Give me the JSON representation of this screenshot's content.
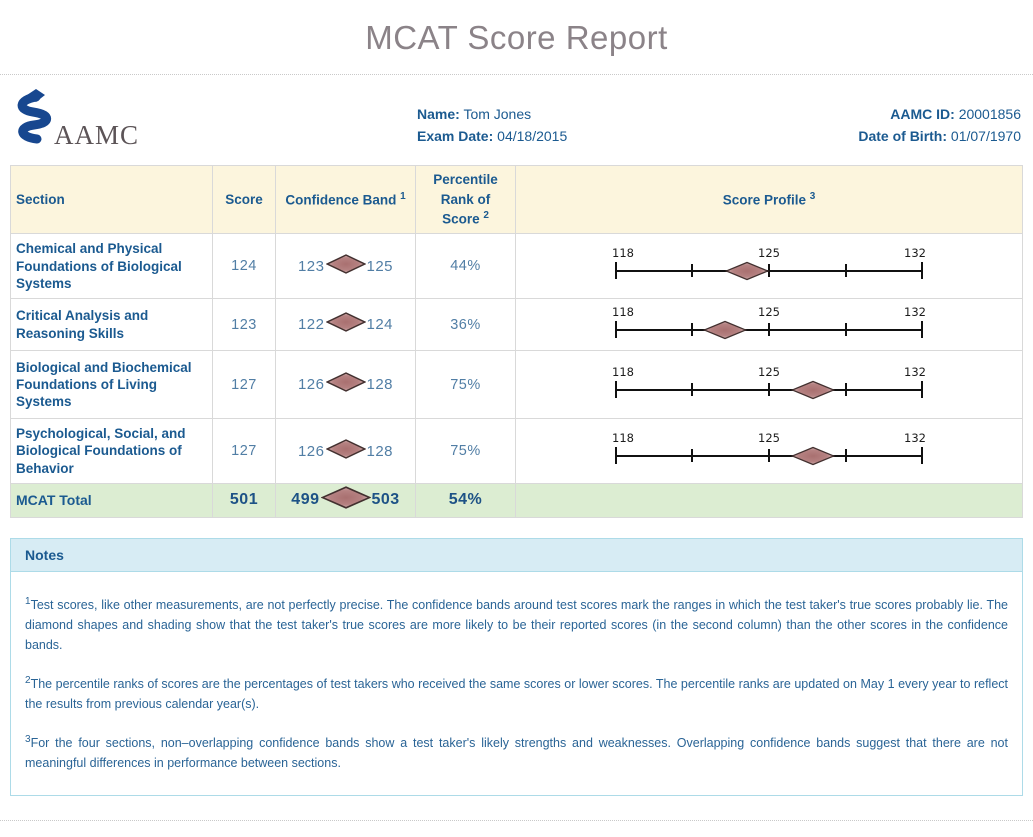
{
  "page": {
    "title": "MCAT Score Report"
  },
  "logo": {
    "text": "AAMC"
  },
  "candidate": {
    "name_label": "Name:",
    "name": "Tom Jones",
    "exam_date_label": "Exam Date:",
    "exam_date": "04/18/2015",
    "aamc_id_label": "AAMC ID:",
    "aamc_id": "20001856",
    "dob_label": "Date of Birth:",
    "dob": "01/07/1970"
  },
  "table": {
    "headers": {
      "section": "Section",
      "score": "Score",
      "confidence_band": "Confidence Band",
      "confidence_band_sup": "1",
      "percentile": "Percentile Rank of Score",
      "percentile_sup": "2",
      "profile": "Score Profile",
      "profile_sup": "3"
    },
    "axis": {
      "min": 118,
      "mid": 125,
      "max": 132
    },
    "rows": [
      {
        "section": "Chemical and Physical Foundations of Biological Systems",
        "score": 124,
        "band_low": 123,
        "band_high": 125,
        "percentile": "44%"
      },
      {
        "section": "Critical Analysis and Reasoning Skills",
        "score": 123,
        "band_low": 122,
        "band_high": 124,
        "percentile": "36%"
      },
      {
        "section": "Biological and Biochemical Foundations of Living Systems",
        "score": 127,
        "band_low": 126,
        "band_high": 128,
        "percentile": "75%"
      },
      {
        "section": "Psychological, Social, and Biological Foundations of Behavior",
        "score": 127,
        "band_low": 126,
        "band_high": 128,
        "percentile": "75%"
      }
    ],
    "total": {
      "section": "MCAT Total",
      "score": 501,
      "band_low": 499,
      "band_high": 503,
      "percentile": "54%"
    }
  },
  "notes": {
    "title": "Notes",
    "items": [
      {
        "sup": "1",
        "text": "Test scores, like other measurements, are not perfectly precise. The confidence bands around test scores mark the ranges in which the test taker's true scores probably lie. The diamond shapes and shading show that the test taker's true scores are more likely to be their reported scores (in the second column) than the other scores in the confidence bands."
      },
      {
        "sup": "2",
        "text": "The percentile ranks of scores are the percentages of test takers who received the same scores or lower scores. The percentile ranks are updated on May 1 every year to reflect the results from previous calendar year(s)."
      },
      {
        "sup": "3",
        "text": "For the four sections, non–overlapping confidence bands show a test taker's likely strengths and weaknesses. Overlapping confidence bands suggest that there are not meaningful differences in performance between sections."
      }
    ]
  },
  "colors": {
    "accent_blue": "#1b5a90",
    "value_blue": "#517ea5",
    "header_cream": "#fcf5dd",
    "total_green": "#dcedd2",
    "notes_bg": "#d7ecf4",
    "notes_border": "#addbe8",
    "diamond_center": "#ad7474",
    "diamond_edge": "#dcc6c6",
    "diamond_border": "#42302f",
    "logo_blue": "#17478f",
    "title_gray": "#8b8388"
  },
  "chart_data": {
    "type": "scatter",
    "title": "Score Profile",
    "x_range": [
      118,
      132
    ],
    "x_ticks": [
      118,
      121.5,
      125,
      128.5,
      132
    ],
    "x_tick_labels_shown": [
      "118",
      "125",
      "132"
    ],
    "series": [
      {
        "name": "Chemical and Physical Foundations of Biological Systems",
        "score": 124,
        "confidence_band": [
          123,
          125
        ],
        "percentile": 44
      },
      {
        "name": "Critical Analysis and Reasoning Skills",
        "score": 123,
        "confidence_band": [
          122,
          124
        ],
        "percentile": 36
      },
      {
        "name": "Biological and Biochemical Foundations of Living Systems",
        "score": 127,
        "confidence_band": [
          126,
          128
        ],
        "percentile": 75
      },
      {
        "name": "Psychological, Social, and Biological Foundations of Behavior",
        "score": 127,
        "confidence_band": [
          126,
          128
        ],
        "percentile": 75
      }
    ],
    "total": {
      "name": "MCAT Total",
      "score": 501,
      "confidence_band": [
        499,
        503
      ],
      "percentile": 54
    }
  }
}
